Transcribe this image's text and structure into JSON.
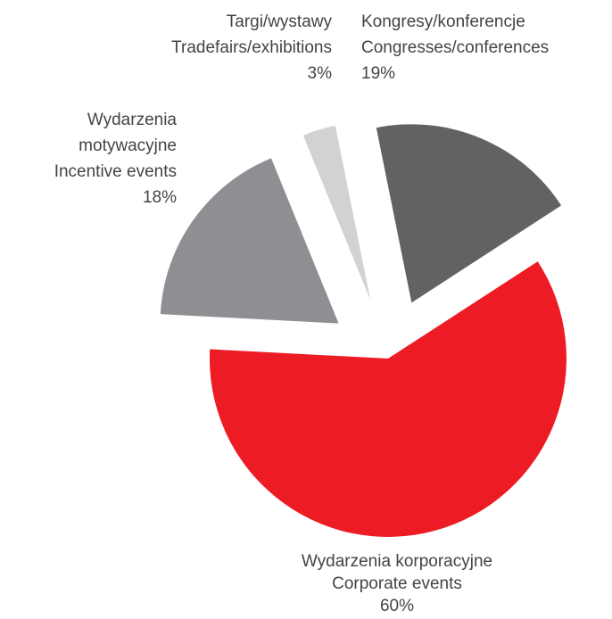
{
  "chart_data": {
    "type": "pie",
    "categories": [
      "Kongresy/konferencje\nCongresses/conferences",
      "Wydarzenia korporacyjne\nCorporate events",
      "Wydarzenia\nmotywacyjne\nIncentive events",
      "Targi/wystawy\nTradefairs/exhibitions"
    ],
    "values": [
      19,
      60,
      18,
      3
    ],
    "value_labels": [
      "19%",
      "60%",
      "18%",
      "3%"
    ],
    "colors": [
      "#626264",
      "#ed1c24",
      "#8e8f93",
      "#d1d2d4"
    ]
  }
}
